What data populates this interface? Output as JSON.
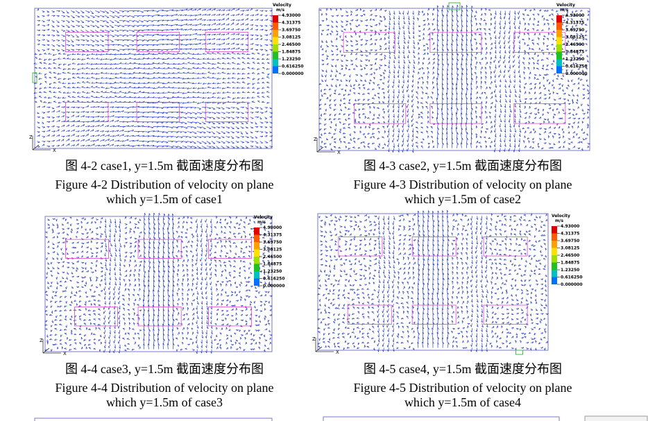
{
  "legend": {
    "title": "Velocity",
    "unit": "m/s",
    "labels": [
      "4.93000",
      "4.31375",
      "3.69750",
      "3.08125",
      "2.46500",
      "1.84875",
      "1.23250",
      "0.616250",
      "0.000000"
    ]
  },
  "axes": {
    "z": "Z",
    "x": "X"
  },
  "figures": [
    {
      "caption_cn": "图 4-2  case1, y=1.5m 截面速度分布图",
      "caption_en": [
        "Figure 4-2 Distribution of velocity on plane",
        "which y=1.5m of case1"
      ]
    },
    {
      "caption_cn": "图 4-3  case2, y=1.5m 截面速度分布图",
      "caption_en": [
        "Figure 4-3 Distribution of velocity on plane",
        "which y=1.5m of case2"
      ]
    },
    {
      "caption_cn": "图 4-4  case3, y=1.5m 截面速度分布图",
      "caption_en": [
        "Figure 4-4 Distribution of velocity on plane",
        "which y=1.5m of case3"
      ]
    },
    {
      "caption_cn": "图 4-5  case4, y=1.5m 截面速度分布图",
      "caption_en": [
        "Figure 4-5 Distribution of velocity on plane",
        "which y=1.5m of case4"
      ]
    }
  ]
}
